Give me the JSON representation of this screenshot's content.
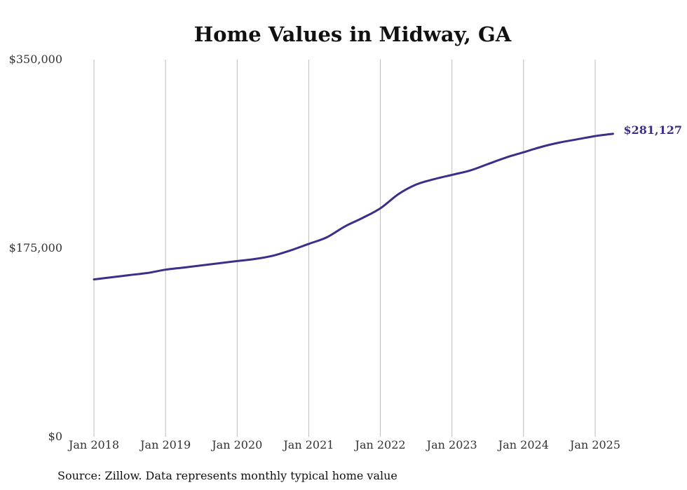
{
  "chart_data": {
    "type": "line",
    "title": "Home Values in Midway, GA",
    "xlabel": "",
    "ylabel": "",
    "ylim": [
      0,
      350000
    ],
    "yticks": [
      0,
      175000,
      350000
    ],
    "ytick_labels": [
      "$0",
      "$175,000",
      "$350,000"
    ],
    "xticks": [
      "2018-01",
      "2019-01",
      "2020-01",
      "2021-01",
      "2022-01",
      "2023-01",
      "2024-01",
      "2025-01"
    ],
    "xtick_labels": [
      "Jan 2018",
      "Jan 2019",
      "Jan 2020",
      "Jan 2021",
      "Jan 2022",
      "Jan 2023",
      "Jan 2024",
      "Jan 2025"
    ],
    "xlim": [
      "2018-01",
      "2025-04"
    ],
    "grid": "vertical",
    "series": [
      {
        "color": "#3b2f8a",
        "x": [
          "2018-01",
          "2018-04",
          "2018-07",
          "2018-10",
          "2019-01",
          "2019-04",
          "2019-07",
          "2019-10",
          "2020-01",
          "2020-04",
          "2020-07",
          "2020-10",
          "2021-01",
          "2021-04",
          "2021-07",
          "2021-10",
          "2022-01",
          "2022-04",
          "2022-07",
          "2022-10",
          "2023-01",
          "2023-04",
          "2023-07",
          "2023-10",
          "2024-01",
          "2024-04",
          "2024-07",
          "2024-10",
          "2025-01",
          "2025-04"
        ],
        "y": [
          146000,
          148000,
          150000,
          152000,
          155000,
          157000,
          159000,
          161000,
          163000,
          165000,
          168000,
          173000,
          179000,
          185000,
          195000,
          203000,
          212000,
          225000,
          234000,
          239000,
          243000,
          247000,
          253000,
          259000,
          264000,
          269000,
          273000,
          276000,
          279000,
          281127
        ]
      }
    ],
    "end_label": "$281,127"
  },
  "footer": {
    "source": "Source: Zillow. Data represents monthly typical home value"
  }
}
